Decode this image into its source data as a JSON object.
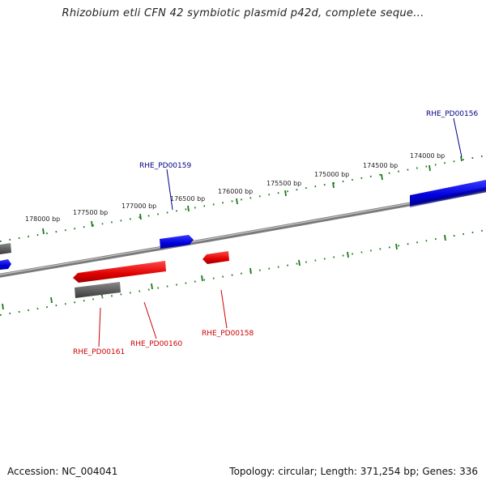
{
  "title": "Rhizobium etli CFN 42 symbiotic plasmid p42d, complete seque...",
  "footer": {
    "accession": "Accession: NC_004041",
    "summary": "Topology: circular; Length: 371,254 bp; Genes: 336"
  },
  "bp_labels": [
    "174000 bp",
    "174500 bp",
    "175000 bp",
    "175500 bp",
    "176000 bp",
    "176500 bp",
    "177000 bp",
    "177500 bp",
    "178000 bp"
  ],
  "gene_labels": {
    "g156": "RHE_PD00156",
    "g159": "RHE_PD00159",
    "g158": "RHE_PD00158",
    "g160": "RHE_PD00160",
    "g161": "RHE_PD00161"
  },
  "colors": {
    "forward": "#0000ee",
    "reverse": "#ee0000",
    "other": "#666666",
    "tick": "#1a7a1a",
    "backbone": "#888888"
  }
}
